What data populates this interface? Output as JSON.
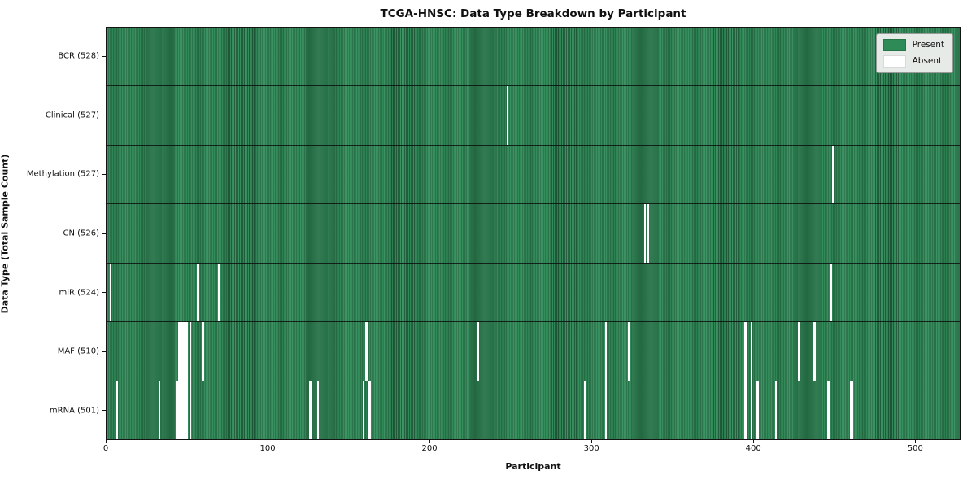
{
  "title": "TCGA-HNSC: Data Type Breakdown by Participant",
  "xlabel": "Participant",
  "ylabel": "Data Type (Total Sample Count)",
  "legend": {
    "present_label": "Present",
    "absent_label": "Absent"
  },
  "colors": {
    "present": "#2e8b57",
    "absent": "#ffffff",
    "row_divider": "#141414",
    "plot_border": "#141414",
    "legend_bg": "#e7ebe7",
    "legend_border": "#9a9a9a"
  },
  "chart_data": {
    "type": "heatmap",
    "title": "TCGA-HNSC: Data Type Breakdown by Participant",
    "xlabel": "Participant",
    "ylabel": "Data Type (Total Sample Count)",
    "n_participants": 528,
    "x_ticks": [
      0,
      100,
      200,
      300,
      400,
      500
    ],
    "legend_entries": [
      {
        "label": "Present",
        "color": "#2e8b57"
      },
      {
        "label": "Absent",
        "color": "#ffffff"
      }
    ],
    "rows": [
      {
        "label": "BCR (528)",
        "data_type": "BCR",
        "present_count": 528,
        "absent_participants": []
      },
      {
        "label": "Clinical (527)",
        "data_type": "Clinical",
        "present_count": 527,
        "absent_participants": [
          247
        ]
      },
      {
        "label": "Methylation (527)",
        "data_type": "Methylation",
        "present_count": 527,
        "absent_participants": [
          448
        ]
      },
      {
        "label": "CN (526)",
        "data_type": "CN",
        "present_count": 526,
        "absent_participants": [
          332,
          334
        ]
      },
      {
        "label": "miR (524)",
        "data_type": "miR",
        "present_count": 524,
        "absent_participants": [
          2,
          56,
          69,
          447
        ]
      },
      {
        "label": "MAF (510)",
        "data_type": "MAF",
        "present_count": 510,
        "absent_participants": [
          44,
          45,
          46,
          47,
          48,
          49,
          51,
          59,
          160,
          229,
          308,
          322,
          394,
          395,
          398,
          427,
          436,
          437
        ]
      },
      {
        "label": "mRNA (501)",
        "data_type": "mRNA",
        "present_count": 501,
        "absent_participants": [
          6,
          32,
          43,
          44,
          45,
          46,
          47,
          48,
          49,
          51,
          125,
          126,
          130,
          158,
          162,
          295,
          308,
          394,
          395,
          398,
          401,
          402,
          413,
          445,
          446,
          459,
          460
        ]
      }
    ]
  }
}
